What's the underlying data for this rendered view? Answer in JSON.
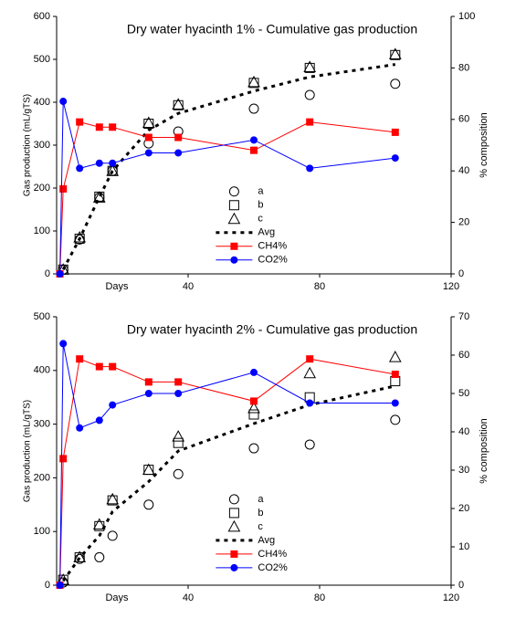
{
  "chart_data": [
    {
      "type": "line",
      "title": "Dry water hyacinth 1% - Cumulative gas production",
      "xlabel": "Days",
      "ylabel": "Gas production (mL/gTS)",
      "y2label": "% composition",
      "x": [
        1,
        2,
        7,
        13,
        17,
        28,
        37,
        60,
        77,
        103
      ],
      "xlim": [
        0,
        120
      ],
      "xticks": [
        40,
        80,
        120
      ],
      "ylim": [
        0,
        600
      ],
      "yticks": [
        0,
        100,
        200,
        300,
        400,
        500,
        600
      ],
      "y2lim": [
        0,
        100
      ],
      "y2ticks": [
        0,
        20,
        40,
        60,
        80,
        100
      ],
      "legend": "center",
      "series": [
        {
          "name": "a",
          "color": "#000000",
          "marker": "circle",
          "line": "none",
          "values": [
            null,
            10,
            80,
            178,
            240,
            304,
            332,
            385,
            417,
            443
          ]
        },
        {
          "name": "b",
          "color": "#000000",
          "marker": "square",
          "line": "none",
          "values": [
            null,
            10,
            82,
            180,
            240,
            350,
            393,
            445,
            480,
            510
          ]
        },
        {
          "name": "c",
          "color": "#000000",
          "marker": "triangle",
          "line": "none",
          "values": [
            null,
            10,
            85,
            178,
            240,
            352,
            395,
            447,
            482,
            512
          ]
        },
        {
          "name": "Avg",
          "color": "#000000",
          "marker": "none",
          "line": "dotted",
          "values": [
            null,
            10,
            82,
            179,
            240,
            335,
            374,
            426,
            459,
            488
          ]
        },
        {
          "name": "CH4%",
          "color": "#ff0000",
          "marker": "filled-square",
          "line": "solid",
          "axis": "y2",
          "values": [
            0,
            33,
            59,
            57,
            57,
            53,
            53,
            48,
            59,
            55
          ]
        },
        {
          "name": "CO2%",
          "color": "#0000ff",
          "marker": "filled-circle",
          "line": "solid",
          "axis": "y2",
          "values": [
            0,
            67,
            41,
            43,
            43,
            47,
            47,
            52,
            41,
            45
          ]
        }
      ]
    },
    {
      "type": "line",
      "title": "Dry water hyacinth  2% - Cumulative gas production",
      "xlabel": "Days",
      "ylabel": "Gas production (mL/gTS)",
      "y2label": "% composition",
      "x": [
        1,
        2,
        7,
        13,
        17,
        28,
        37,
        60,
        77,
        103
      ],
      "xlim": [
        0,
        120
      ],
      "xticks": [
        40,
        80,
        120
      ],
      "ylim": [
        0,
        500
      ],
      "yticks": [
        0,
        100,
        200,
        300,
        400,
        500
      ],
      "y2lim": [
        0,
        70
      ],
      "y2ticks": [
        0,
        10,
        20,
        30,
        40,
        50,
        60,
        70
      ],
      "legend": "center",
      "series": [
        {
          "name": "a",
          "color": "#000000",
          "marker": "circle",
          "line": "none",
          "values": [
            null,
            5,
            49,
            52,
            92,
            150,
            207,
            255,
            262,
            308
          ]
        },
        {
          "name": "b",
          "color": "#000000",
          "marker": "square",
          "line": "none",
          "values": [
            null,
            10,
            52,
            110,
            158,
            215,
            265,
            318,
            350,
            380
          ]
        },
        {
          "name": "c",
          "color": "#000000",
          "marker": "triangle",
          "line": "none",
          "values": [
            null,
            10,
            52,
            113,
            160,
            215,
            277,
            330,
            395,
            425
          ]
        },
        {
          "name": "Avg",
          "color": "#000000",
          "marker": "none",
          "line": "dotted",
          "values": [
            null,
            8,
            51,
            92,
            137,
            193,
            250,
            301,
            336,
            371
          ]
        },
        {
          "name": "CH4%",
          "color": "#ff0000",
          "marker": "filled-square",
          "line": "solid",
          "axis": "y2",
          "values": [
            0,
            33,
            59,
            57,
            57,
            53,
            53,
            48,
            59,
            55
          ]
        },
        {
          "name": "CO2%",
          "color": "#0000ff",
          "marker": "filled-circle",
          "line": "solid",
          "axis": "y2",
          "values": [
            0,
            63,
            41,
            43,
            47,
            50,
            50,
            55.5,
            47.5,
            47.5
          ]
        }
      ]
    }
  ]
}
